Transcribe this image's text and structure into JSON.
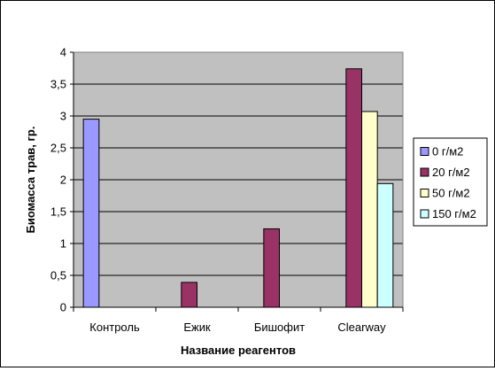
{
  "chart_data": {
    "type": "bar",
    "title": "",
    "xlabel": "Название реагентов",
    "ylabel": "Биомасса трав, гр.",
    "ylim": [
      0,
      4
    ],
    "ytick_values": [
      0,
      0.5,
      1,
      1.5,
      2,
      2.5,
      3,
      3.5,
      4
    ],
    "ytick_labels": [
      "0",
      "0,5",
      "1",
      "1,5",
      "2",
      "2,5",
      "3",
      "3,5",
      "4"
    ],
    "categories": [
      "Контроль",
      "Ежик",
      "Бишофит",
      "Clearway"
    ],
    "series": [
      {
        "name": "0 г/м2",
        "color": "#9999ff",
        "values": [
          2.95,
          null,
          null,
          null
        ]
      },
      {
        "name": "20 г/м2",
        "color": "#993366",
        "values": [
          null,
          0.39,
          1.23,
          3.74
        ]
      },
      {
        "name": "50 г/м2",
        "color": "#ffffcc",
        "values": [
          null,
          null,
          null,
          3.07
        ]
      },
      {
        "name": "150 г/м2",
        "color": "#ccffff",
        "values": [
          null,
          null,
          null,
          1.94
        ]
      }
    ],
    "plot_background": "#c0c0c0",
    "grid": true,
    "legend_position": "right"
  }
}
